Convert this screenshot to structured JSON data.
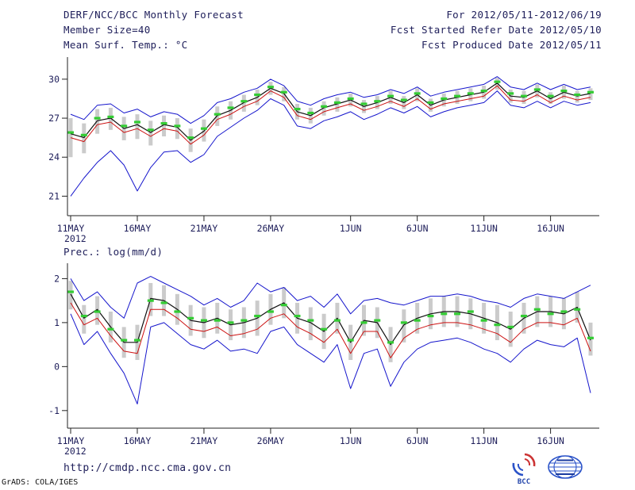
{
  "header": {
    "title": "DERF/NCC/BCC Monthly Forecast",
    "for_range": "For 2012/05/11-2012/06/19",
    "member_size": "Member Size=40",
    "fcst_started": "Fcst Started Refer Date 2012/05/10",
    "fcst_produced": "Fcst Produced Date 2012/05/11"
  },
  "footer": {
    "url": "http://cmdp.ncc.cma.gov.cn",
    "grads_credit": "GrADS: COLA/IGES",
    "logo_bcc": "BCC"
  },
  "chart_data": [
    {
      "type": "line",
      "title": "Mean Surf. Temp.: °C",
      "n_points": 40,
      "x_tick_labels": [
        "11MAY",
        "16MAY",
        "21MAY",
        "26MAY",
        "1JUN",
        "6JUN",
        "11JUN",
        "16JUN"
      ],
      "x_tick_positions": [
        0,
        5,
        10,
        15,
        21,
        26,
        31,
        36
      ],
      "x_year_label": "2012",
      "ylim": [
        19.5,
        31.7
      ],
      "yticks": [
        21,
        24,
        27,
        30
      ],
      "grid": false,
      "bars": {
        "name": "member-spread",
        "color": "#cbcbcb",
        "low": [
          24.0,
          24.3,
          25.8,
          26.1,
          25.3,
          25.4,
          24.9,
          25.6,
          25.4,
          24.4,
          25.2,
          26.4,
          26.9,
          27.5,
          28.0,
          28.8,
          28.3,
          26.9,
          26.6,
          27.2,
          27.5,
          27.9,
          27.4,
          27.7,
          28.1,
          27.7,
          28.3,
          27.5,
          27.9,
          28.1,
          28.3,
          28.5,
          29.2,
          28.2,
          28.1,
          28.6,
          28.1,
          28.5,
          28.2,
          28.4
        ],
        "high": [
          27.0,
          26.6,
          27.7,
          27.8,
          27.1,
          27.3,
          26.8,
          27.2,
          27.0,
          26.2,
          26.9,
          27.9,
          28.3,
          28.8,
          29.2,
          29.8,
          29.4,
          28.1,
          27.8,
          28.3,
          28.6,
          28.9,
          28.4,
          28.7,
          29.1,
          28.7,
          29.3,
          28.5,
          28.9,
          29.1,
          29.3,
          29.5,
          30.1,
          29.2,
          29.1,
          29.6,
          29.0,
          29.5,
          29.1,
          29.3
        ]
      },
      "series": [
        {
          "name": "upper-envelope",
          "color": "#1515cc",
          "width": 1,
          "values": [
            27.3,
            26.9,
            28.0,
            28.1,
            27.4,
            27.7,
            27.1,
            27.5,
            27.3,
            26.6,
            27.2,
            28.2,
            28.5,
            29.0,
            29.3,
            30.0,
            29.5,
            28.3,
            28.0,
            28.5,
            28.8,
            29.0,
            28.6,
            28.8,
            29.2,
            28.9,
            29.4,
            28.7,
            29.0,
            29.2,
            29.4,
            29.6,
            30.2,
            29.4,
            29.2,
            29.7,
            29.2,
            29.6,
            29.2,
            29.4
          ]
        },
        {
          "name": "lower-envelope",
          "color": "#1515cc",
          "width": 1,
          "values": [
            21.0,
            22.4,
            23.6,
            24.5,
            23.4,
            21.4,
            23.2,
            24.4,
            24.5,
            23.6,
            24.2,
            25.6,
            26.3,
            27.0,
            27.6,
            28.5,
            28.0,
            26.4,
            26.2,
            26.8,
            27.1,
            27.5,
            26.9,
            27.3,
            27.8,
            27.4,
            27.9,
            27.1,
            27.5,
            27.8,
            28.0,
            28.2,
            29.1,
            28.0,
            27.8,
            28.3,
            27.8,
            28.3,
            28.0,
            28.2
          ]
        },
        {
          "name": "red-line",
          "color": "#cc1111",
          "width": 1,
          "values": [
            25.5,
            25.2,
            26.5,
            26.7,
            25.9,
            26.2,
            25.6,
            26.2,
            26.0,
            25.0,
            25.7,
            26.9,
            27.3,
            27.9,
            28.3,
            29.1,
            28.6,
            27.2,
            26.9,
            27.5,
            27.8,
            28.1,
            27.6,
            27.9,
            28.3,
            27.9,
            28.5,
            27.7,
            28.1,
            28.3,
            28.5,
            28.7,
            29.5,
            28.4,
            28.3,
            28.8,
            28.2,
            28.7,
            28.4,
            28.6
          ]
        },
        {
          "name": "ensemble-mean",
          "color": "#111111",
          "width": 1.2,
          "values": [
            25.8,
            25.5,
            26.8,
            27.0,
            26.2,
            26.5,
            25.9,
            26.5,
            26.3,
            25.3,
            26.0,
            27.2,
            27.6,
            28.2,
            28.6,
            29.3,
            28.9,
            27.5,
            27.2,
            27.8,
            28.1,
            28.4,
            27.9,
            28.2,
            28.6,
            28.2,
            28.8,
            28.0,
            28.4,
            28.6,
            28.8,
            29.0,
            29.7,
            28.7,
            28.6,
            29.1,
            28.5,
            29.0,
            28.7,
            28.9
          ]
        }
      ],
      "markers": {
        "name": "green-dashes",
        "color": "#33cc33",
        "values": [
          25.9,
          25.7,
          27.0,
          27.1,
          26.4,
          26.7,
          26.1,
          26.6,
          26.4,
          25.5,
          26.2,
          27.3,
          27.8,
          28.3,
          28.8,
          29.4,
          29.0,
          27.7,
          27.4,
          27.9,
          28.2,
          28.5,
          28.1,
          28.3,
          28.7,
          28.4,
          28.9,
          28.2,
          28.5,
          28.7,
          28.9,
          29.1,
          29.8,
          28.9,
          28.7,
          29.2,
          28.7,
          29.1,
          28.8,
          29.0
        ]
      }
    },
    {
      "type": "line",
      "title": "Prec.: log(mm/d)",
      "n_points": 40,
      "x_tick_labels": [
        "11MAY",
        "16MAY",
        "21MAY",
        "26MAY",
        "1JUN",
        "6JUN",
        "11JUN",
        "16JUN"
      ],
      "x_tick_positions": [
        0,
        5,
        10,
        15,
        21,
        26,
        31,
        36
      ],
      "x_year_label": "2012",
      "ylim": [
        -1.4,
        2.35
      ],
      "yticks": [
        -1,
        0,
        1,
        2
      ],
      "grid": false,
      "bars": {
        "name": "member-spread",
        "color": "#cbcbcb",
        "low": [
          1.3,
          0.75,
          0.95,
          0.55,
          0.2,
          0.15,
          1.15,
          1.15,
          0.95,
          0.7,
          0.65,
          0.75,
          0.6,
          0.65,
          0.7,
          0.95,
          1.1,
          0.75,
          0.6,
          0.4,
          0.75,
          0.15,
          0.7,
          0.65,
          0.1,
          0.55,
          0.75,
          0.85,
          0.9,
          0.9,
          0.85,
          0.75,
          0.6,
          0.45,
          0.75,
          0.9,
          0.9,
          0.85,
          1.0,
          0.25
        ],
        "high": [
          1.95,
          1.4,
          1.6,
          1.25,
          0.9,
          0.95,
          1.9,
          1.85,
          1.65,
          1.4,
          1.35,
          1.45,
          1.3,
          1.35,
          1.5,
          1.65,
          1.8,
          1.45,
          1.35,
          1.2,
          1.45,
          0.95,
          1.4,
          1.35,
          0.9,
          1.3,
          1.45,
          1.55,
          1.6,
          1.6,
          1.55,
          1.45,
          1.4,
          1.25,
          1.45,
          1.6,
          1.6,
          1.55,
          1.7,
          1.0
        ]
      },
      "series": [
        {
          "name": "upper-envelope",
          "color": "#1515cc",
          "width": 1,
          "values": [
            2.0,
            1.5,
            1.7,
            1.35,
            1.1,
            1.9,
            2.05,
            1.9,
            1.75,
            1.6,
            1.4,
            1.55,
            1.35,
            1.5,
            1.9,
            1.7,
            1.8,
            1.5,
            1.6,
            1.35,
            1.65,
            1.2,
            1.5,
            1.55,
            1.45,
            1.4,
            1.5,
            1.6,
            1.6,
            1.65,
            1.6,
            1.5,
            1.45,
            1.35,
            1.55,
            1.65,
            1.6,
            1.55,
            1.7,
            1.85
          ]
        },
        {
          "name": "lower-envelope",
          "color": "#1515cc",
          "width": 1,
          "values": [
            1.2,
            0.5,
            0.8,
            0.3,
            -0.15,
            -0.85,
            0.9,
            1.0,
            0.75,
            0.5,
            0.4,
            0.6,
            0.35,
            0.4,
            0.3,
            0.8,
            0.9,
            0.5,
            0.3,
            0.1,
            0.5,
            -0.5,
            0.3,
            0.4,
            -0.45,
            0.1,
            0.4,
            0.55,
            0.6,
            0.65,
            0.55,
            0.4,
            0.3,
            0.1,
            0.4,
            0.6,
            0.5,
            0.45,
            0.65,
            -0.6
          ]
        },
        {
          "name": "red-line",
          "color": "#cc1111",
          "width": 1,
          "values": [
            1.45,
            0.95,
            1.1,
            0.7,
            0.35,
            0.3,
            1.3,
            1.3,
            1.1,
            0.85,
            0.8,
            0.9,
            0.7,
            0.75,
            0.85,
            1.1,
            1.2,
            0.9,
            0.75,
            0.55,
            0.85,
            0.3,
            0.8,
            0.8,
            0.2,
            0.65,
            0.85,
            0.95,
            1.0,
            1.0,
            0.95,
            0.85,
            0.75,
            0.55,
            0.85,
            1.0,
            1.0,
            0.95,
            1.1,
            0.35
          ]
        },
        {
          "name": "ensemble-mean",
          "color": "#111111",
          "width": 1.2,
          "values": [
            1.65,
            1.1,
            1.3,
            0.9,
            0.55,
            0.55,
            1.55,
            1.5,
            1.3,
            1.05,
            1.0,
            1.1,
            0.95,
            1.0,
            1.1,
            1.3,
            1.45,
            1.1,
            1.0,
            0.8,
            1.1,
            0.55,
            1.05,
            1.0,
            0.5,
            0.95,
            1.1,
            1.2,
            1.25,
            1.25,
            1.2,
            1.1,
            1.0,
            0.85,
            1.1,
            1.25,
            1.25,
            1.2,
            1.35,
            0.6
          ]
        }
      ],
      "markers": {
        "name": "green-dashes",
        "color": "#33cc33",
        "values": [
          1.7,
          1.15,
          1.25,
          0.85,
          0.6,
          0.6,
          1.5,
          1.45,
          1.25,
          1.1,
          1.05,
          1.05,
          1.0,
          1.05,
          1.15,
          1.25,
          1.4,
          1.15,
          1.05,
          0.85,
          1.05,
          0.6,
          1.0,
          1.05,
          0.55,
          1.0,
          1.05,
          1.15,
          1.2,
          1.2,
          1.25,
          1.05,
          0.95,
          0.9,
          1.15,
          1.3,
          1.2,
          1.25,
          1.3,
          0.65
        ]
      }
    }
  ]
}
